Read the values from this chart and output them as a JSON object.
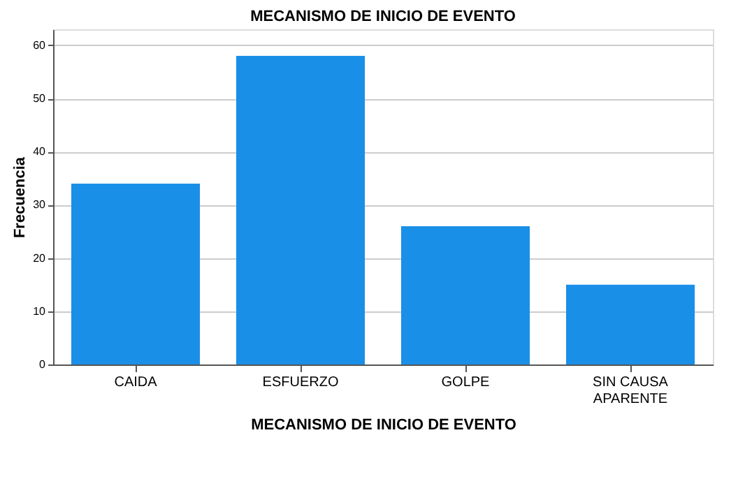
{
  "chart_data": {
    "type": "bar",
    "title": "MECANISMO DE INICIO DE EVENTO",
    "xlabel": "MECANISMO DE INICIO DE EVENTO",
    "ylabel": "Frecuencia",
    "categories": [
      "CAIDA",
      "ESFUERZO",
      "GOLPE",
      "SIN CAUSA APARENTE"
    ],
    "values": [
      34,
      58,
      26,
      15
    ],
    "color": "#1a8fe8",
    "ylim": [
      0,
      63
    ],
    "yticks": [
      0,
      10,
      20,
      30,
      40,
      50,
      60
    ],
    "grid": "y"
  }
}
